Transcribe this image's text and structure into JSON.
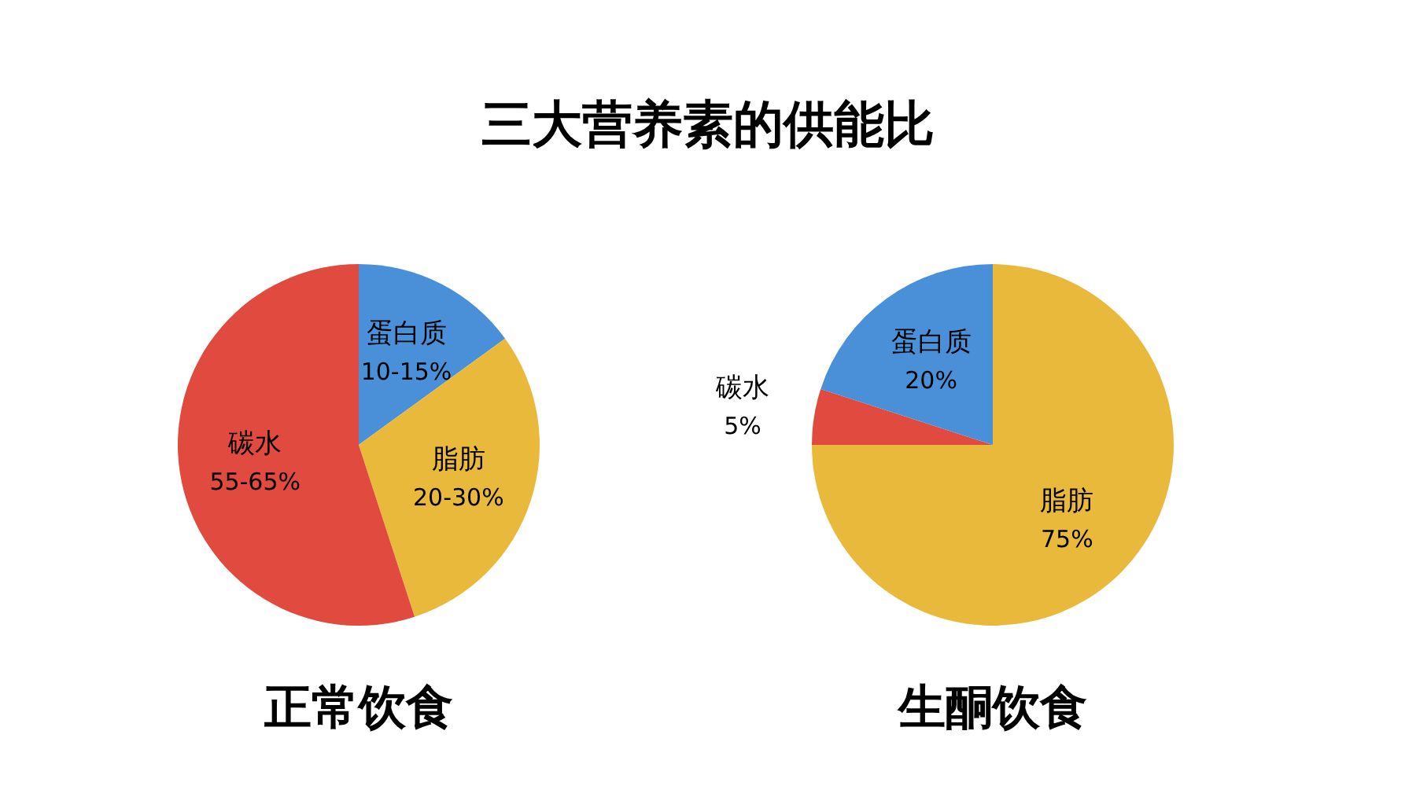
{
  "chart_data": [
    {
      "type": "pie",
      "title": "三大营养素的供能比",
      "subtitle": "正常饮食",
      "categories": [
        "蛋白质",
        "脂肪",
        "碳水"
      ],
      "values": [
        15,
        30,
        55
      ],
      "annotations": [
        "10-15%",
        "20-30%",
        "55-65%"
      ],
      "colors": [
        "#4a90d9",
        "#e9b93c",
        "#e04a3f"
      ]
    },
    {
      "type": "pie",
      "subtitle": "生酮饮食",
      "categories": [
        "脂肪",
        "碳水",
        "蛋白质"
      ],
      "values": [
        75,
        5,
        20
      ],
      "value_labels": [
        "75%",
        "5%",
        "20%"
      ],
      "colors": [
        "#e9b93c",
        "#e04a3f",
        "#4a90d9"
      ]
    }
  ]
}
